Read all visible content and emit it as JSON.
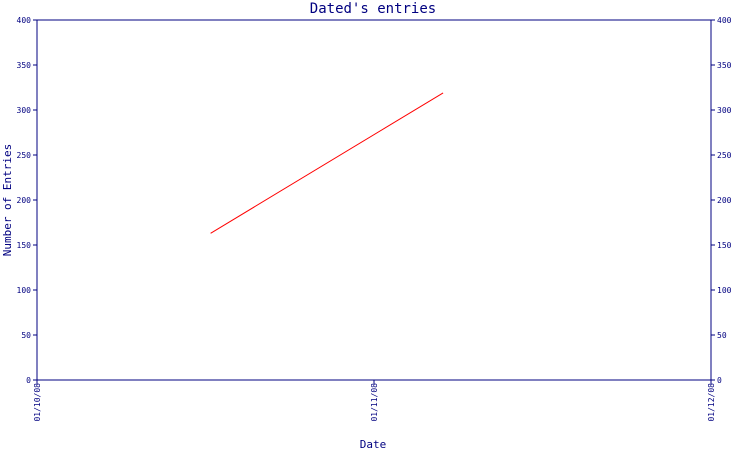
{
  "chart_data": {
    "type": "line",
    "title": "Dated's entries",
    "xlabel": "Date",
    "ylabel": "Number of Entries",
    "x_ticks": [
      "01/10/08",
      "01/11/08",
      "01/12/08"
    ],
    "ylim": [
      0,
      400
    ],
    "y_ticks": [
      0,
      50,
      100,
      150,
      200,
      250,
      300,
      350,
      400
    ],
    "series": [
      {
        "color": "#ff0000",
        "x": [
          0.515,
          1.205
        ],
        "y": [
          163,
          319
        ]
      }
    ],
    "grid": false,
    "right_axis": true
  },
  "colors": {
    "axis": "#000080",
    "background": "#ffffff"
  }
}
